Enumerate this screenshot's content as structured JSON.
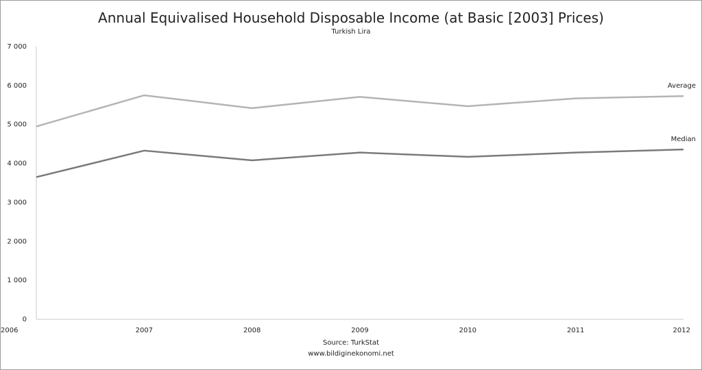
{
  "chart_data": {
    "type": "line",
    "title": "Annual Equivalised Household Disposable Income (at Basic [2003] Prices)",
    "subtitle": "Turkish Lira",
    "x": [
      "2006",
      "2007",
      "2008",
      "2009",
      "2010",
      "2011",
      "2012"
    ],
    "ylim": [
      0,
      7000
    ],
    "yticks": [
      0,
      1000,
      2000,
      3000,
      4000,
      5000,
      6000,
      7000
    ],
    "ytick_labels": [
      "0",
      "1 000",
      "2 000",
      "3 000",
      "4 000",
      "5 000",
      "6 000",
      "7 000"
    ],
    "grid": false,
    "series": [
      {
        "name": "Average",
        "color": "#b4b4b4",
        "values": [
          4950,
          5750,
          5420,
          5710,
          5470,
          5670,
          5730
        ]
      },
      {
        "name": "Median",
        "color": "#7a7a7a",
        "values": [
          3650,
          4330,
          4080,
          4280,
          4170,
          4280,
          4360
        ]
      }
    ],
    "source": "Source: TurkStat",
    "website": "www.bildiginekonomi.net"
  }
}
